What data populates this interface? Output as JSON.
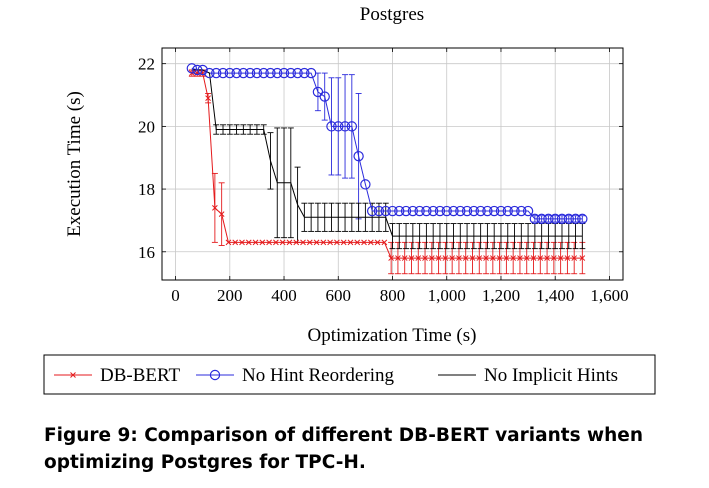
{
  "chart_data": {
    "type": "line",
    "title": "Postgres",
    "xlabel": "Optimization Time (s)",
    "ylabel": "Execution Time (s)",
    "xlim": [
      -50,
      1650
    ],
    "ylim": [
      15.1,
      22.5
    ],
    "xticks": [
      0,
      200,
      400,
      600,
      800,
      1000,
      1200,
      1400,
      1600
    ],
    "xtick_labels": [
      "0",
      "200",
      "400",
      "600",
      "800",
      "1,000",
      "1,200",
      "1,400",
      "1,600"
    ],
    "yticks": [
      16,
      18,
      20,
      22
    ],
    "ytick_labels": [
      "16",
      "18",
      "20",
      "22"
    ],
    "grid": true,
    "legend_position": "bottom",
    "series": [
      {
        "name": "DB-BERT",
        "color": "#e41a1c",
        "marker": "x",
        "x": [
          60,
          80,
          100,
          120,
          145,
          170,
          195,
          220,
          245,
          270,
          295,
          320,
          345,
          370,
          395,
          420,
          445,
          470,
          495,
          520,
          545,
          570,
          595,
          620,
          645,
          670,
          695,
          720,
          745,
          770,
          795,
          820,
          845,
          870,
          895,
          920,
          945,
          970,
          995,
          1020,
          1045,
          1070,
          1095,
          1120,
          1145,
          1170,
          1195,
          1220,
          1245,
          1270,
          1295,
          1320,
          1345,
          1370,
          1395,
          1420,
          1445,
          1470,
          1500
        ],
        "y": [
          21.7,
          21.7,
          21.7,
          20.9,
          17.4,
          17.2,
          16.3,
          16.3,
          16.3,
          16.3,
          16.3,
          16.3,
          16.3,
          16.3,
          16.3,
          16.3,
          16.3,
          16.3,
          16.3,
          16.3,
          16.3,
          16.3,
          16.3,
          16.3,
          16.3,
          16.3,
          16.3,
          16.3,
          16.3,
          16.3,
          15.8,
          15.8,
          15.8,
          15.8,
          15.8,
          15.8,
          15.8,
          15.8,
          15.8,
          15.8,
          15.8,
          15.8,
          15.8,
          15.8,
          15.8,
          15.8,
          15.8,
          15.8,
          15.8,
          15.8,
          15.8,
          15.8,
          15.8,
          15.8,
          15.8,
          15.8,
          15.8,
          15.8,
          15.8
        ],
        "err": [
          0.1,
          0.1,
          0.1,
          0.15,
          1.1,
          1.0,
          0,
          0,
          0,
          0,
          0,
          0,
          0,
          0,
          0,
          0,
          0,
          0,
          0,
          0,
          0,
          0,
          0,
          0,
          0,
          0,
          0,
          0,
          0,
          0,
          0.5,
          0.5,
          0.5,
          0.5,
          0.5,
          0.5,
          0.5,
          0.5,
          0.5,
          0.5,
          0.5,
          0.5,
          0.5,
          0.5,
          0.5,
          0.5,
          0.5,
          0.5,
          0.5,
          0.5,
          0.5,
          0.5,
          0.5,
          0.5,
          0.5,
          0.5,
          0.5,
          0.5,
          0.5
        ]
      },
      {
        "name": "No Hint Reordering",
        "color": "#2b2bdc",
        "marker": "o",
        "x": [
          60,
          80,
          100,
          125,
          150,
          175,
          200,
          225,
          250,
          275,
          300,
          325,
          350,
          375,
          400,
          425,
          450,
          475,
          500,
          525,
          550,
          575,
          600,
          625,
          650,
          675,
          700,
          725,
          750,
          775,
          800,
          825,
          850,
          875,
          900,
          925,
          950,
          975,
          1000,
          1025,
          1050,
          1075,
          1100,
          1125,
          1150,
          1175,
          1200,
          1225,
          1250,
          1275,
          1300,
          1325,
          1350,
          1375,
          1400,
          1425,
          1450,
          1475,
          1500
        ],
        "y": [
          21.85,
          21.8,
          21.8,
          21.7,
          21.7,
          21.7,
          21.7,
          21.7,
          21.7,
          21.7,
          21.7,
          21.7,
          21.7,
          21.7,
          21.7,
          21.7,
          21.7,
          21.7,
          21.7,
          21.1,
          20.95,
          20,
          20,
          20,
          20,
          19.05,
          18.15,
          17.3,
          17.3,
          17.3,
          17.3,
          17.3,
          17.3,
          17.3,
          17.3,
          17.3,
          17.3,
          17.3,
          17.3,
          17.3,
          17.3,
          17.3,
          17.3,
          17.3,
          17.3,
          17.3,
          17.3,
          17.3,
          17.3,
          17.3,
          17.3,
          17.05,
          17.05,
          17.05,
          17.05,
          17.05,
          17.05,
          17.05,
          17.05
        ],
        "err": [
          0,
          0,
          0,
          0,
          0,
          0,
          0,
          0,
          0,
          0,
          0,
          0,
          0,
          0,
          0,
          0,
          0,
          0,
          0,
          0.6,
          0.75,
          1.55,
          1.55,
          1.65,
          1.65,
          2.0,
          0,
          0,
          0,
          0,
          0,
          0,
          0,
          0,
          0,
          0,
          0,
          0,
          0,
          0,
          0,
          0,
          0,
          0,
          0,
          0,
          0,
          0,
          0,
          0,
          0,
          0.1,
          0.1,
          0.1,
          0.1,
          0.1,
          0.1,
          0.1,
          0.1
        ]
      },
      {
        "name": "No Implicit Hints",
        "color": "#000000",
        "marker": "none",
        "x": [
          60,
          80,
          100,
          125,
          150,
          175,
          200,
          225,
          250,
          275,
          300,
          325,
          350,
          375,
          400,
          425,
          450,
          475,
          500,
          525,
          550,
          575,
          600,
          625,
          650,
          675,
          700,
          725,
          750,
          775,
          800,
          825,
          850,
          875,
          900,
          925,
          950,
          975,
          1000,
          1025,
          1050,
          1075,
          1100,
          1125,
          1150,
          1175,
          1200,
          1225,
          1250,
          1275,
          1300,
          1325,
          1350,
          1375,
          1400,
          1425,
          1450,
          1475,
          1500
        ],
        "y": [
          21.8,
          21.8,
          21.8,
          21.7,
          19.9,
          19.9,
          19.9,
          19.9,
          19.9,
          19.9,
          19.9,
          19.9,
          18.9,
          18.2,
          18.2,
          18.2,
          17.5,
          17.1,
          17.1,
          17.1,
          17.1,
          17.1,
          17.1,
          17.1,
          17.1,
          17.1,
          17.1,
          17.1,
          17.1,
          17.1,
          16.5,
          16.5,
          16.5,
          16.5,
          16.5,
          16.5,
          16.5,
          16.5,
          16.5,
          16.5,
          16.5,
          16.5,
          16.5,
          16.5,
          16.5,
          16.5,
          16.5,
          16.5,
          16.5,
          16.5,
          16.5,
          16.5,
          16.5,
          16.5,
          16.5,
          16.5,
          16.5,
          16.5,
          16.5
        ],
        "err": [
          0,
          0,
          0,
          0,
          0.15,
          0.15,
          0.15,
          0.15,
          0.15,
          0.15,
          0.15,
          0.15,
          0.9,
          1.75,
          1.75,
          1.75,
          1.2,
          0.45,
          0.45,
          0.45,
          0.45,
          0.45,
          0.45,
          0.45,
          0.45,
          0.45,
          0.45,
          0.45,
          0.45,
          0.45,
          0.4,
          0.4,
          0.4,
          0.4,
          0.4,
          0.4,
          0.4,
          0.4,
          0.4,
          0.4,
          0.4,
          0.4,
          0.4,
          0.4,
          0.4,
          0.4,
          0.4,
          0.4,
          0.4,
          0.4,
          0.4,
          0.4,
          0.4,
          0.4,
          0.4,
          0.4,
          0.4,
          0.4,
          0.4
        ]
      }
    ]
  },
  "caption": "Figure 9: Comparison of different DB-BERT variants when optimizing Postgres for TPC-H."
}
